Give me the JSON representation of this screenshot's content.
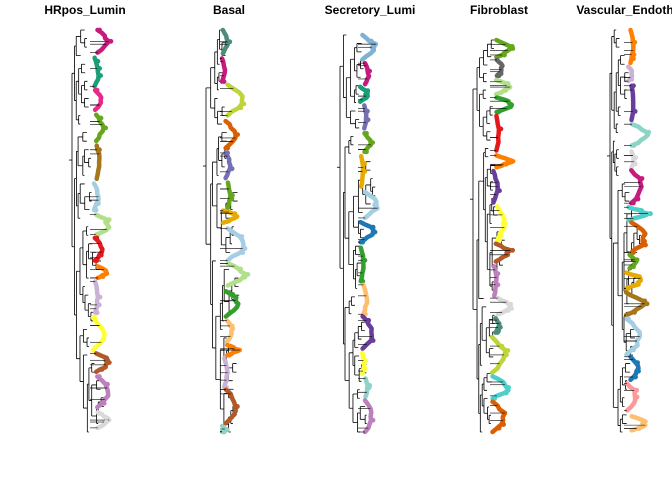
{
  "figure": {
    "panels": [
      {
        "title": "HRpos_Lumin"
      },
      {
        "title": "Basal"
      },
      {
        "title": "Secretory_Lumi"
      },
      {
        "title": "Fibroblast"
      },
      {
        "title": "Vascular_Endoth"
      }
    ]
  },
  "colors": {
    "tree": "#000000",
    "palette": [
      "#1b9e77",
      "#d95f02",
      "#7570b3",
      "#e7298a",
      "#66a61e",
      "#e6ab02",
      "#a6761d",
      "#666666",
      "#a6cee3",
      "#1f78b4",
      "#b2df8a",
      "#33a02c",
      "#fb9a99",
      "#e31a1c",
      "#fdbf6f",
      "#ff7f00",
      "#cab2d6",
      "#6a3d9a",
      "#ffff33",
      "#b15928",
      "#8dd3c7",
      "#bc80bd",
      "#d9d9d9",
      "#80b1d3",
      "#4d8c7a",
      "#c51b7d",
      "#bfd33a",
      "#4dd0c8"
    ]
  }
}
